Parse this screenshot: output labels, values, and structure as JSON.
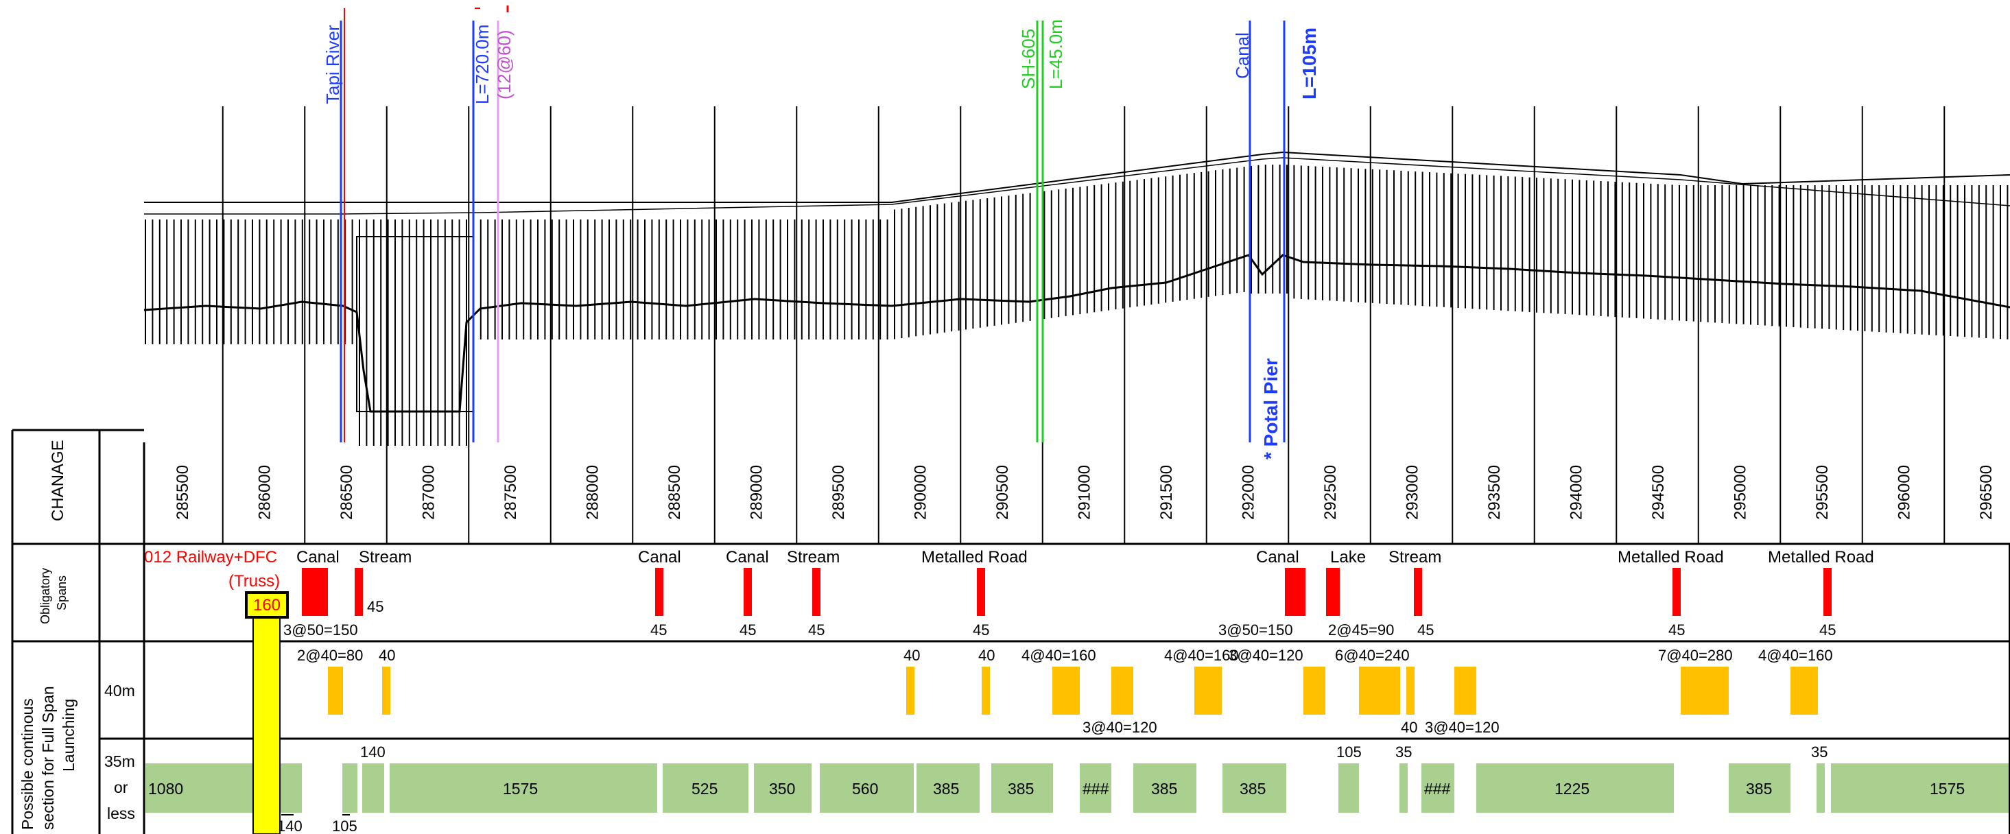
{
  "chainage": {
    "row_label": "CHANAGE",
    "ticks": [
      "285500",
      "286000",
      "286500",
      "287000",
      "287500",
      "288000",
      "288500",
      "289000",
      "289500",
      "290000",
      "290500",
      "291000",
      "291500",
      "292000",
      "292500",
      "293000",
      "293500",
      "294000",
      "294500",
      "295000",
      "295500",
      "296000",
      "296500"
    ]
  },
  "profile_annotations": [
    {
      "id": "tapi-river",
      "text": "Tapi River",
      "color": "#1e3cff"
    },
    {
      "id": "l720",
      "text": "L=720.0m",
      "color": "#1e3cff"
    },
    {
      "id": "span12",
      "text": "(12@60)",
      "color": "#c050d0"
    },
    {
      "id": "sh605",
      "text": "SH-605",
      "color": "#22cc22"
    },
    {
      "id": "l45",
      "text": "L=45.0m",
      "color": "#22cc22"
    },
    {
      "id": "canal-top",
      "text": "Canal",
      "color": "#1e3cff"
    },
    {
      "id": "l105",
      "text": "L=105m",
      "color": "#1e3cff"
    },
    {
      "id": "potal-pier",
      "text": "* Potal Pier",
      "color": "#1e3cff"
    }
  ],
  "obligatory": {
    "row_label_line1": "Obligatory",
    "row_label_line2": "Spans",
    "crossing_label": "012 Railway+DFC",
    "truss_label": "(Truss)",
    "truss_value": "160",
    "names": [
      {
        "id": "n1",
        "text": "Canal"
      },
      {
        "id": "n2",
        "text": "Stream"
      },
      {
        "id": "n3",
        "text": "Canal"
      },
      {
        "id": "n4",
        "text": "Canal"
      },
      {
        "id": "n5",
        "text": "Stream"
      },
      {
        "id": "n6",
        "text": "Metalled Road"
      },
      {
        "id": "n7",
        "text": "Canal"
      },
      {
        "id": "n8",
        "text": "Lake"
      },
      {
        "id": "n9",
        "text": "Stream"
      },
      {
        "id": "n10",
        "text": "Metalled Road"
      },
      {
        "id": "n11",
        "text": "Metalled Road"
      }
    ],
    "values": [
      {
        "id": "v1",
        "text": "45"
      },
      {
        "id": "v2",
        "text": "3@50=150"
      },
      {
        "id": "v3",
        "text": "45"
      },
      {
        "id": "v4",
        "text": "45"
      },
      {
        "id": "v5",
        "text": "45"
      },
      {
        "id": "v6",
        "text": "45"
      },
      {
        "id": "v7",
        "text": "3@50=150"
      },
      {
        "id": "v8",
        "text": "2@45=90"
      },
      {
        "id": "v9",
        "text": "45"
      },
      {
        "id": "v10",
        "text": "45"
      },
      {
        "id": "v11",
        "text": "45"
      }
    ]
  },
  "continuous": {
    "section_label_line1": "Possible continous",
    "section_label_line2": "section for Full Span",
    "section_label_line3": "Launching",
    "row40_label": "40m",
    "row35_label_line1": "35m",
    "row35_label_line2": "or",
    "row35_label_line3": "less",
    "labels40": [
      {
        "id": "a1",
        "text": "2@40=80"
      },
      {
        "id": "a2",
        "text": "40"
      },
      {
        "id": "a3",
        "text": "40"
      },
      {
        "id": "a4",
        "text": "40"
      },
      {
        "id": "a5",
        "text": "4@40=160"
      },
      {
        "id": "a6",
        "text": "3@40=120"
      },
      {
        "id": "a7",
        "text": "4@40=160"
      },
      {
        "id": "a8",
        "text": "3@40=120"
      },
      {
        "id": "a9",
        "text": "6@40=240"
      },
      {
        "id": "a10",
        "text": "40"
      },
      {
        "id": "a11",
        "text": "3@40=120"
      },
      {
        "id": "a12",
        "text": "7@40=280"
      },
      {
        "id": "a13",
        "text": "4@40=160"
      }
    ],
    "labels35": [
      {
        "id": "g1",
        "text": "1080"
      },
      {
        "id": "g2",
        "text": "1575"
      },
      {
        "id": "g3",
        "text": "525"
      },
      {
        "id": "g4",
        "text": "350"
      },
      {
        "id": "g5",
        "text": "560"
      },
      {
        "id": "g6",
        "text": "385"
      },
      {
        "id": "g7",
        "text": "385"
      },
      {
        "id": "g8",
        "text": "###"
      },
      {
        "id": "g9",
        "text": "385"
      },
      {
        "id": "g10",
        "text": "385"
      },
      {
        "id": "g11",
        "text": "###"
      },
      {
        "id": "g12",
        "text": "1225"
      },
      {
        "id": "g13",
        "text": "385"
      },
      {
        "id": "g14",
        "text": "1575"
      },
      {
        "id": "g15",
        "text": "140"
      },
      {
        "id": "g16",
        "text": "105"
      },
      {
        "id": "g17",
        "text": "35"
      },
      {
        "id": "g18",
        "text": "35"
      },
      {
        "id": "g19",
        "text": "140"
      },
      {
        "id": "g20",
        "text": "105"
      }
    ]
  },
  "colors": {
    "obligatory_bar": "#ff0000",
    "span40_bar": "#ffc000",
    "span35_bar": "#a9d08e",
    "truss_fill": "#ffff00",
    "river_line": "#1e3cff",
    "road_line": "#22cc22",
    "text_red": "#ff0000"
  }
}
